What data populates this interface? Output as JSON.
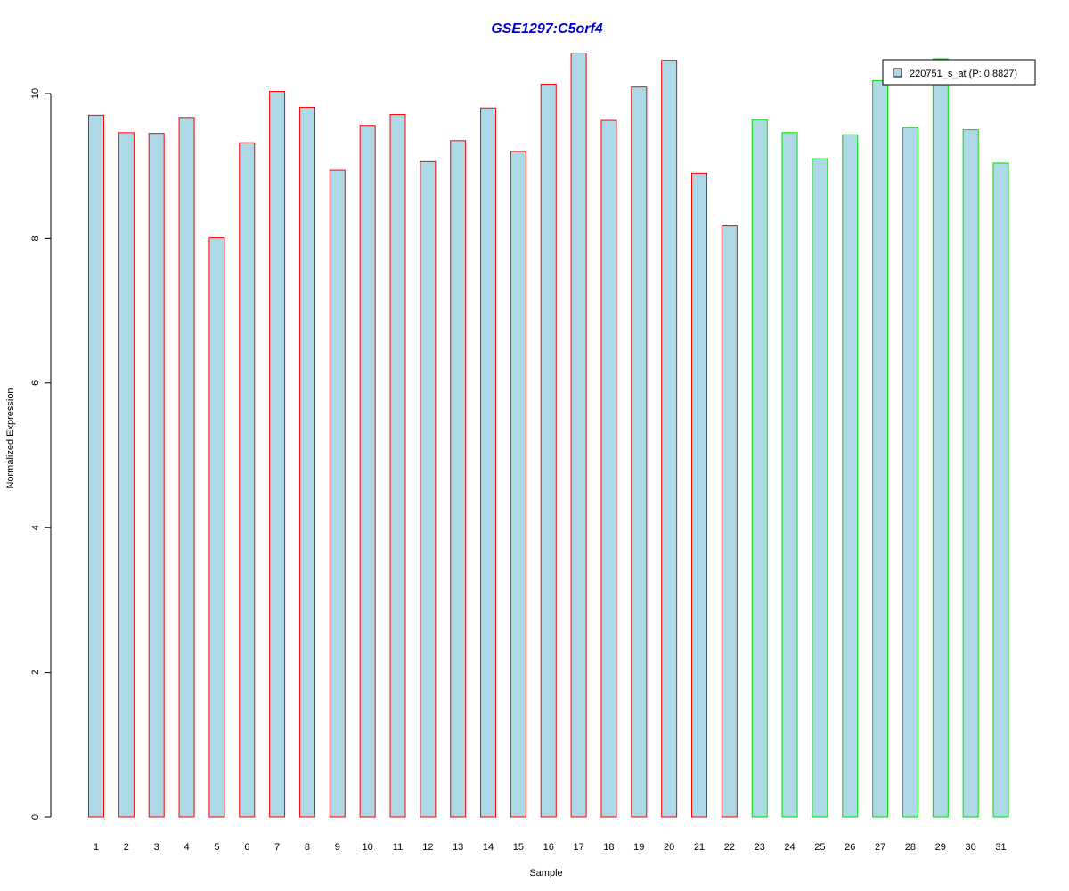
{
  "chart_data": {
    "type": "bar",
    "title": "GSE1297:C5orf4",
    "xlabel": "Sample",
    "ylabel": "Normalized Expression",
    "ylim": [
      0,
      10.7
    ],
    "yticks": [
      0,
      2,
      4,
      6,
      8,
      10
    ],
    "categories": [
      "1",
      "2",
      "3",
      "4",
      "5",
      "6",
      "7",
      "8",
      "9",
      "10",
      "11",
      "12",
      "13",
      "14",
      "15",
      "16",
      "17",
      "18",
      "19",
      "20",
      "21",
      "22",
      "23",
      "24",
      "25",
      "26",
      "27",
      "28",
      "29",
      "30",
      "31"
    ],
    "values": [
      9.7,
      9.46,
      9.45,
      9.67,
      8.01,
      9.32,
      10.03,
      9.81,
      8.94,
      9.56,
      9.71,
      9.06,
      9.35,
      9.8,
      9.2,
      10.13,
      10.56,
      9.63,
      10.09,
      10.46,
      8.9,
      8.17,
      9.64,
      9.46,
      9.1,
      9.43,
      10.18,
      9.53,
      10.48,
      9.5,
      9.04
    ],
    "groups": [
      "red",
      "red",
      "red",
      "red",
      "red",
      "red",
      "red",
      "red",
      "red",
      "red",
      "red",
      "red",
      "red",
      "red",
      "red",
      "red",
      "red",
      "red",
      "red",
      "red",
      "red",
      "red",
      "green",
      "green",
      "green",
      "green",
      "green",
      "green",
      "green",
      "green",
      "green"
    ],
    "legend": {
      "label": "220751_s_at (P: 0.8827)",
      "position": "top-right"
    },
    "colors": {
      "bar_fill": "#add8e6",
      "red_border": "#ff0000",
      "green_border": "#00dd00",
      "title": "#0000cc"
    },
    "grid": false
  }
}
